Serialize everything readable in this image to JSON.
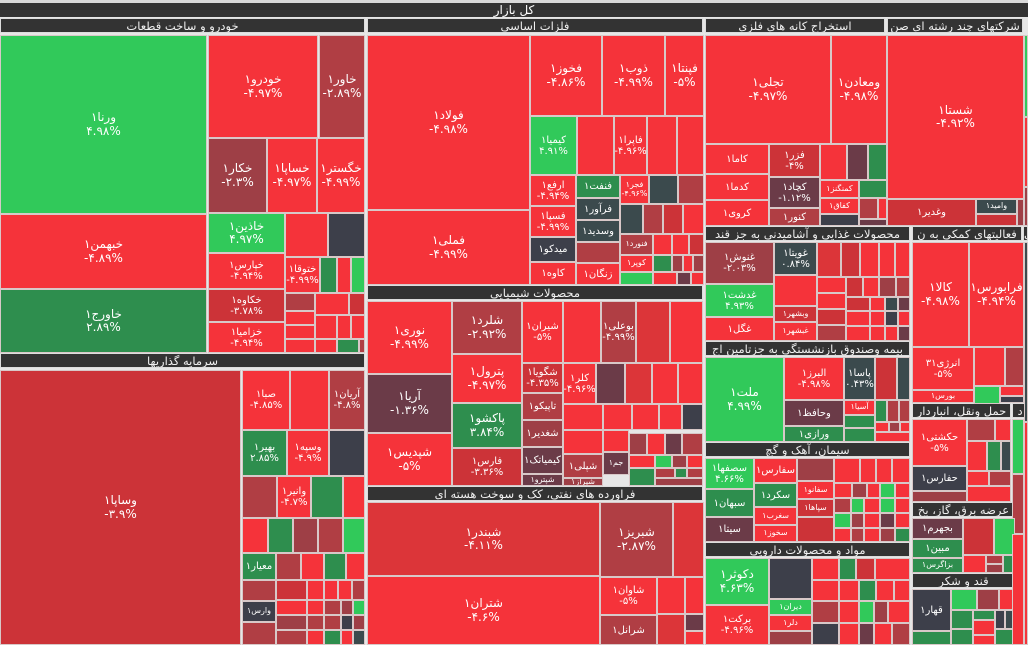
{
  "market_title": "کل بازار",
  "colors": {
    "up": "#31c95a",
    "up_dark": "#2e8e4e",
    "down": "#f5333a",
    "down_dark": "#b03e44",
    "neutral": "#3d3f4a"
  },
  "sectors": [
    {
      "title": "خودرو و ساخت قطعات",
      "stocks": [
        {
          "name": "ورنا۱",
          "change": "۴.۹۸%"
        },
        {
          "name": "خبهمن۱",
          "change": "-۴.۸۹%"
        },
        {
          "name": "خاورج۱",
          "change": "۲.۸۹%"
        },
        {
          "name": "خودرو۱",
          "change": "-۴.۹۷%"
        },
        {
          "name": "خاور۱",
          "change": "-۲.۸۹%"
        },
        {
          "name": "خکار۱",
          "change": "-۲.۳%"
        },
        {
          "name": "خساپا۱",
          "change": "-۴.۹۷%"
        },
        {
          "name": "خگستر۱",
          "change": "-۴.۹۹%"
        },
        {
          "name": "خاذین۱",
          "change": "۴.۹۷%"
        },
        {
          "name": "خپارس۱",
          "change": "-۴.۹۴%"
        },
        {
          "name": "خکاوه۱",
          "change": "-۳.۷۸%"
        },
        {
          "name": "خزامیا۱",
          "change": "-۴.۹۴%"
        },
        {
          "name": "ختوقا۱",
          "change": "-۴.۹۹%"
        }
      ]
    },
    {
      "title": "سرمایه گذاریها",
      "stocks": [
        {
          "name": "وساپا۱",
          "change": "-۳.۹%"
        },
        {
          "name": "صبا۱",
          "change": "-۴.۸۵%"
        },
        {
          "name": "آریان۱",
          "change": "-۴.۸%"
        },
        {
          "name": "بهیر۱",
          "change": "۲.۸۵%"
        },
        {
          "name": "وسپه۱",
          "change": "-۴.۹%"
        },
        {
          "name": "وانیر۱",
          "change": "-۴.۷%"
        },
        {
          "name": "معیار۱",
          "change": ""
        },
        {
          "name": "وارس۱",
          "change": ""
        }
      ]
    },
    {
      "title": "فلزات اساسی",
      "stocks": [
        {
          "name": "فولاد۱",
          "change": "-۴.۹۸%"
        },
        {
          "name": "فملی۱",
          "change": "-۴.۹۹%"
        },
        {
          "name": "فخوز۱",
          "change": "-۴.۸۶%"
        },
        {
          "name": "ذوب۱",
          "change": "-۴.۹۹%"
        },
        {
          "name": "فپنتا۱",
          "change": "-۵%"
        },
        {
          "name": "کیمیا۱",
          "change": "۴.۹۱%"
        },
        {
          "name": "فاپرا۱",
          "change": "-۴.۹۶%"
        },
        {
          "name": "ارفع۱",
          "change": "-۴.۹۴%"
        },
        {
          "name": "فنفت۱",
          "change": ""
        },
        {
          "name": "فجر۱",
          "change": "-۴.۹۶%"
        },
        {
          "name": "فسپا۱",
          "change": "-۴.۹۹%"
        },
        {
          "name": "فرآور۱",
          "change": ""
        },
        {
          "name": "وسدید۱",
          "change": ""
        },
        {
          "name": "میدکو۱",
          "change": ""
        },
        {
          "name": "کاوه۱",
          "change": ""
        },
        {
          "name": "زنگان۱",
          "change": ""
        },
        {
          "name": "فنورد۱",
          "change": ""
        },
        {
          "name": "کوپر۱",
          "change": ""
        }
      ]
    },
    {
      "title": "محصولات شیمیایی",
      "stocks": [
        {
          "name": "نوری۱",
          "change": "-۴.۹۹%"
        },
        {
          "name": "آریا۱",
          "change": "-۱.۳۶%"
        },
        {
          "name": "شپدیس۱",
          "change": "-۵%"
        },
        {
          "name": "شلرد۱",
          "change": "-۲.۹۲%"
        },
        {
          "name": "پترول۱",
          "change": "-۴.۹۷%"
        },
        {
          "name": "پاکشو۱",
          "change": "۳.۸۴%"
        },
        {
          "name": "فارس۱",
          "change": "-۳.۳۶%"
        },
        {
          "name": "شیران۱",
          "change": "-۵%"
        },
        {
          "name": "بوعلی۱",
          "change": "-۴.۹۹%"
        },
        {
          "name": "شگویا۱",
          "change": "-۴.۳۵%"
        },
        {
          "name": "کلر۱",
          "change": "-۴.۹۶%"
        },
        {
          "name": "تاپیکو۱",
          "change": ""
        },
        {
          "name": "شغدیر۱",
          "change": ""
        },
        {
          "name": "کیمیاتک۱",
          "change": ""
        },
        {
          "name": "شپترو۱",
          "change": ""
        },
        {
          "name": "شپلی۱",
          "change": ""
        },
        {
          "name": "شیراز۱",
          "change": ""
        },
        {
          "name": "جم۱",
          "change": ""
        }
      ]
    },
    {
      "title": "فراورده های نفتی، کک و سوخت هسته ای",
      "stocks": [
        {
          "name": "شبندر۱",
          "change": "-۴.۱۱%"
        },
        {
          "name": "شتران۱",
          "change": "-۴.۶%"
        },
        {
          "name": "شبریز۱",
          "change": "-۲.۸۷%"
        },
        {
          "name": "شاوان۱",
          "change": "-۵%"
        },
        {
          "name": "شرانل۱",
          "change": ""
        }
      ]
    },
    {
      "title": "استخراج کانه های فلزی",
      "stocks": [
        {
          "name": "تجلی۱",
          "change": "-۴.۹۷%"
        },
        {
          "name": "ومعادن۱",
          "change": "-۴.۹۸%"
        },
        {
          "name": "کاما۱",
          "change": ""
        },
        {
          "name": "کدما۱",
          "change": ""
        },
        {
          "name": "کروی۱",
          "change": ""
        },
        {
          "name": "فزر۱",
          "change": "-۴%"
        },
        {
          "name": "کچاد۱",
          "change": "-۱.۱۲%"
        },
        {
          "name": "کنور۱",
          "change": ""
        },
        {
          "name": "کمنگنز۱",
          "change": ""
        },
        {
          "name": "کفاق۱",
          "change": ""
        }
      ]
    },
    {
      "title": "شرکتهای چند رشته ای صن",
      "stocks": [
        {
          "name": "شستا۱",
          "change": "-۴.۹۲%"
        },
        {
          "name": "وغدیر۱",
          "change": ""
        },
        {
          "name": "وامید۱",
          "change": ""
        }
      ]
    },
    {
      "title": "محصولات غذایی و آشامیدنی به جز قند",
      "stocks": [
        {
          "name": "غنوش۱",
          "change": "-۲.۰۳%"
        },
        {
          "name": "غدشت۱",
          "change": "۴.۹۳%"
        },
        {
          "name": "غگل۱",
          "change": ""
        },
        {
          "name": "غویتا۱",
          "change": "۰.۸۴%"
        },
        {
          "name": "وبشهر۱",
          "change": ""
        },
        {
          "name": "غبشهر۱",
          "change": ""
        }
      ]
    },
    {
      "title": "فعالیتهای کمکی به ن",
      "stocks": [
        {
          "name": "کالا۱",
          "change": "-۴.۹۸%"
        },
        {
          "name": "فرابورس۱",
          "change": "-۴.۹۴%"
        },
        {
          "name": "انرژی۳۱",
          "change": "-۵%"
        },
        {
          "name": "بورس۱",
          "change": ""
        }
      ]
    },
    {
      "title": "بیمه وصندوق بازنشستگی به جزتامین اج",
      "stocks": [
        {
          "name": "ملت۱",
          "change": "۴.۹۹%"
        },
        {
          "name": "البرز۱",
          "change": "-۴.۹۸%"
        },
        {
          "name": "وحافظ۱",
          "change": ""
        },
        {
          "name": "ورازی۱",
          "change": ""
        },
        {
          "name": "پاسا۱",
          "change": "۰.۴۳%"
        },
        {
          "name": "آسیا۱",
          "change": ""
        }
      ]
    },
    {
      "title": "سیمان، آهک و گچ",
      "stocks": [
        {
          "name": "سصفها۱",
          "change": "۴.۶۶%"
        },
        {
          "name": "سبهان۱",
          "change": ""
        },
        {
          "name": "سیتا۱",
          "change": ""
        },
        {
          "name": "سفارس۱",
          "change": ""
        },
        {
          "name": "سکرد۱",
          "change": ""
        },
        {
          "name": "سغرب۱",
          "change": ""
        },
        {
          "name": "سخوز۱",
          "change": ""
        },
        {
          "name": "سفانو۱",
          "change": ""
        },
        {
          "name": "سپاها۱",
          "change": ""
        }
      ]
    },
    {
      "title": "مواد و محصولات دارویی",
      "stocks": [
        {
          "name": "دکوثر۱",
          "change": "۴.۶۳%"
        },
        {
          "name": "برکت۱",
          "change": "-۴.۹۶%"
        },
        {
          "name": "دیران۱",
          "change": ""
        },
        {
          "name": "دلر۱",
          "change": ""
        }
      ]
    },
    {
      "title": "حمل ونقل، انباردار",
      "stocks": [
        {
          "name": "حکشتی۱",
          "change": "-۵%"
        },
        {
          "name": "حفارس۱",
          "change": ""
        }
      ]
    },
    {
      "title": "عرضه برق، گاز، بخ",
      "stocks": [
        {
          "name": "بجهرم۱",
          "change": ""
        },
        {
          "name": "مبین۱",
          "change": ""
        },
        {
          "name": "بزاگرس۱",
          "change": ""
        }
      ]
    },
    {
      "title": "قند و شکر",
      "stocks": [
        {
          "name": "قهار۱",
          "change": ""
        }
      ]
    },
    {
      "title": "ی",
      "stocks": []
    },
    {
      "title": "د",
      "stocks": []
    }
  ]
}
